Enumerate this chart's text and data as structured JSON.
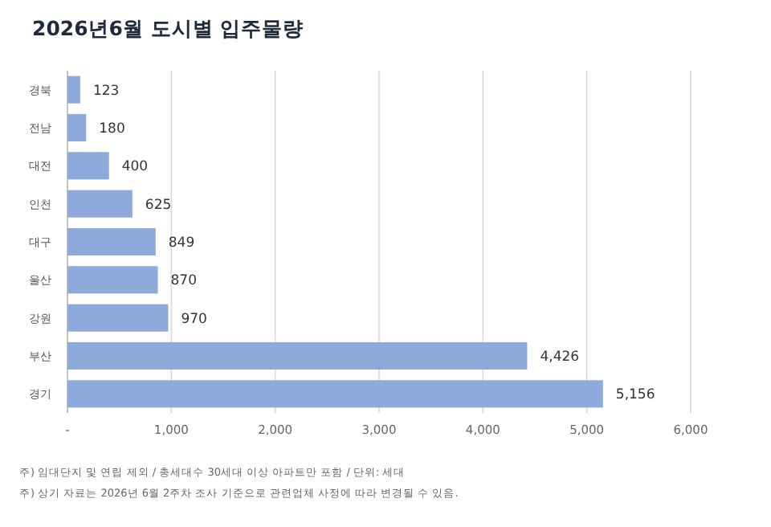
{
  "chart_data": {
    "type": "bar",
    "orientation": "horizontal",
    "title": "2026년6월 도시별 입주물량",
    "categories": [
      "경북",
      "전남",
      "대전",
      "인천",
      "대구",
      "울산",
      "강원",
      "부산",
      "경기"
    ],
    "values": [
      123,
      180,
      400,
      625,
      849,
      870,
      970,
      4426,
      5156
    ],
    "value_labels": [
      "123",
      "180",
      "400",
      "625",
      "849",
      "870",
      "970",
      "4,426",
      "5,156"
    ],
    "color": "#8eaadb",
    "xlim": [
      0,
      6000
    ],
    "xticks": [
      {
        "value": 0,
        "label": "-"
      },
      {
        "value": 1000,
        "label": "1,000"
      },
      {
        "value": 2000,
        "label": "2,000"
      },
      {
        "value": 3000,
        "label": "3,000"
      },
      {
        "value": 4000,
        "label": "4,000"
      },
      {
        "value": 5000,
        "label": "5,000"
      },
      {
        "value": 6000,
        "label": "6,000"
      }
    ],
    "grid": "x",
    "annotations": [
      "주) 임대단지 및 연립 제외 / 총세대수 30세대 이상 아파트만 포함 / 단위: 세대",
      "주) 상기 자료는 2026년 6월 2주차 조사 기준으로 관련업체 사정에 따라 변경될 수 있음."
    ]
  }
}
